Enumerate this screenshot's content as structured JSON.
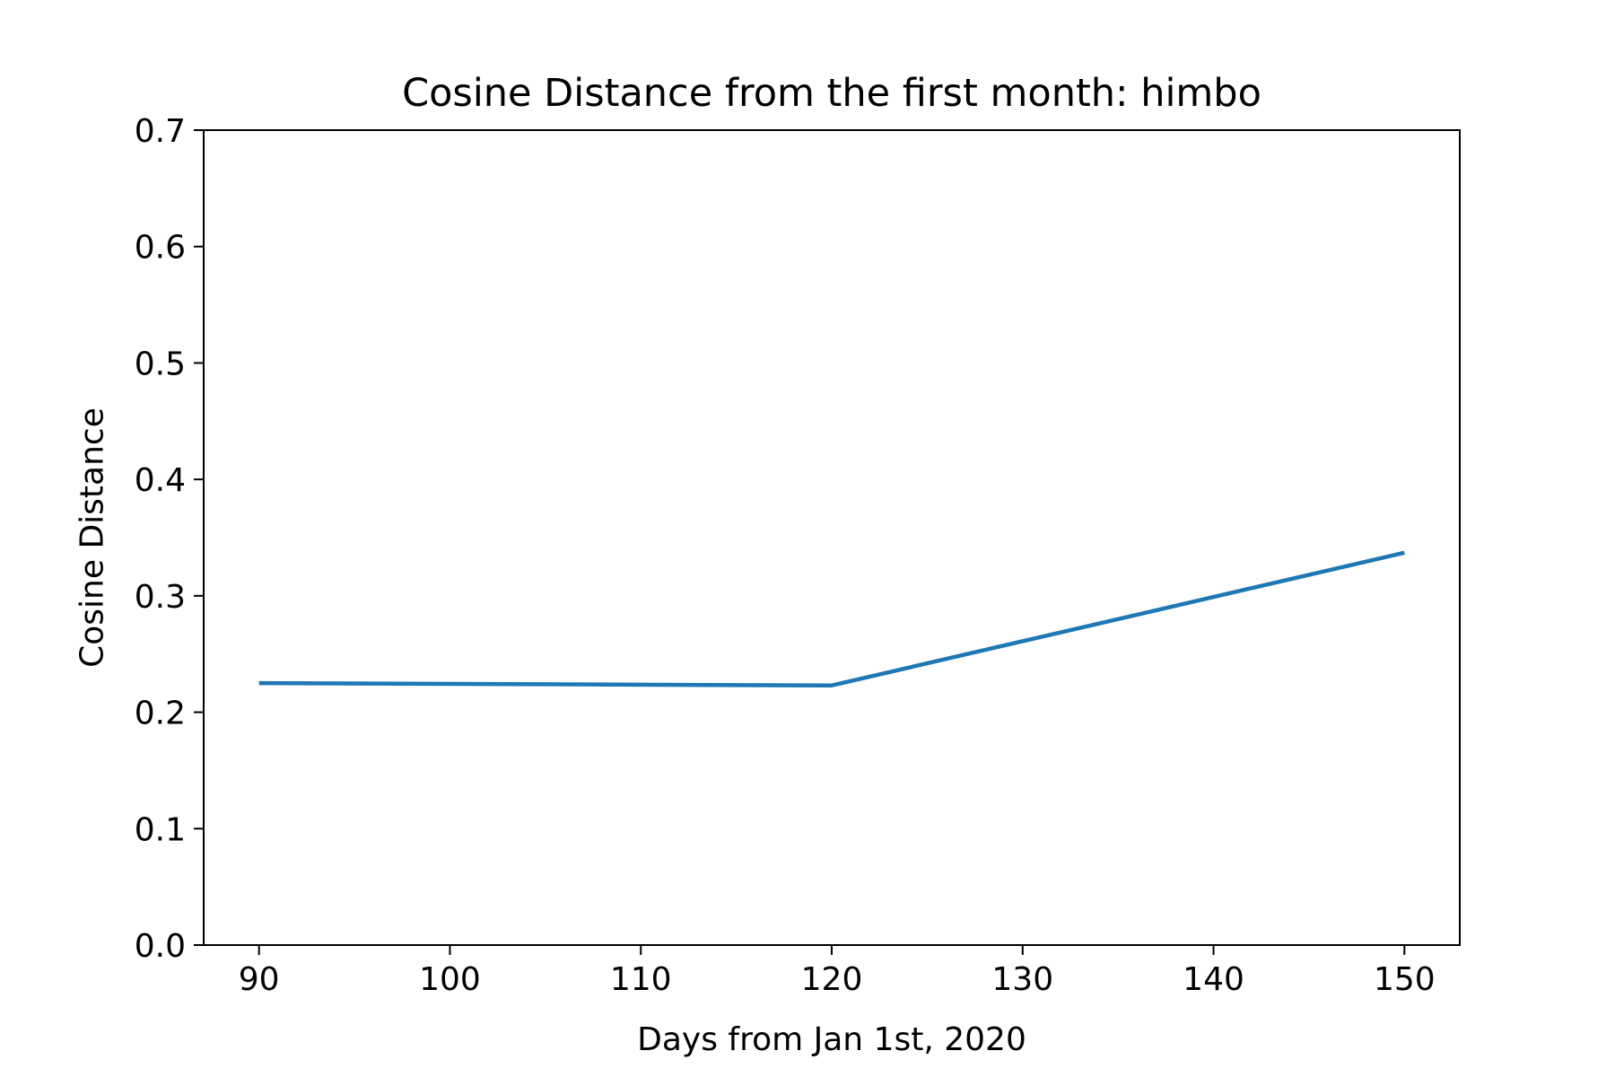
{
  "chart_data": {
    "type": "line",
    "title": "Cosine Distance from the first month: himbo",
    "xlabel": "Days from Jan 1st, 2020",
    "ylabel": "Cosine Distance",
    "xlim": [
      87.1,
      152.9
    ],
    "ylim": [
      0.0,
      0.7
    ],
    "x_ticks": [
      90,
      100,
      110,
      120,
      130,
      140,
      150
    ],
    "x_tick_labels": [
      "90",
      "100",
      "110",
      "120",
      "130",
      "140",
      "150"
    ],
    "y_ticks": [
      0.0,
      0.1,
      0.2,
      0.3,
      0.4,
      0.5,
      0.6,
      0.7
    ],
    "y_tick_labels": [
      "0.0",
      "0.1",
      "0.2",
      "0.3",
      "0.4",
      "0.5",
      "0.6",
      "0.7"
    ],
    "grid": false,
    "series": [
      {
        "x": [
          90,
          120,
          150
        ],
        "y": [
          0.225,
          0.223,
          0.337
        ],
        "color": "#1f77b4"
      }
    ]
  }
}
